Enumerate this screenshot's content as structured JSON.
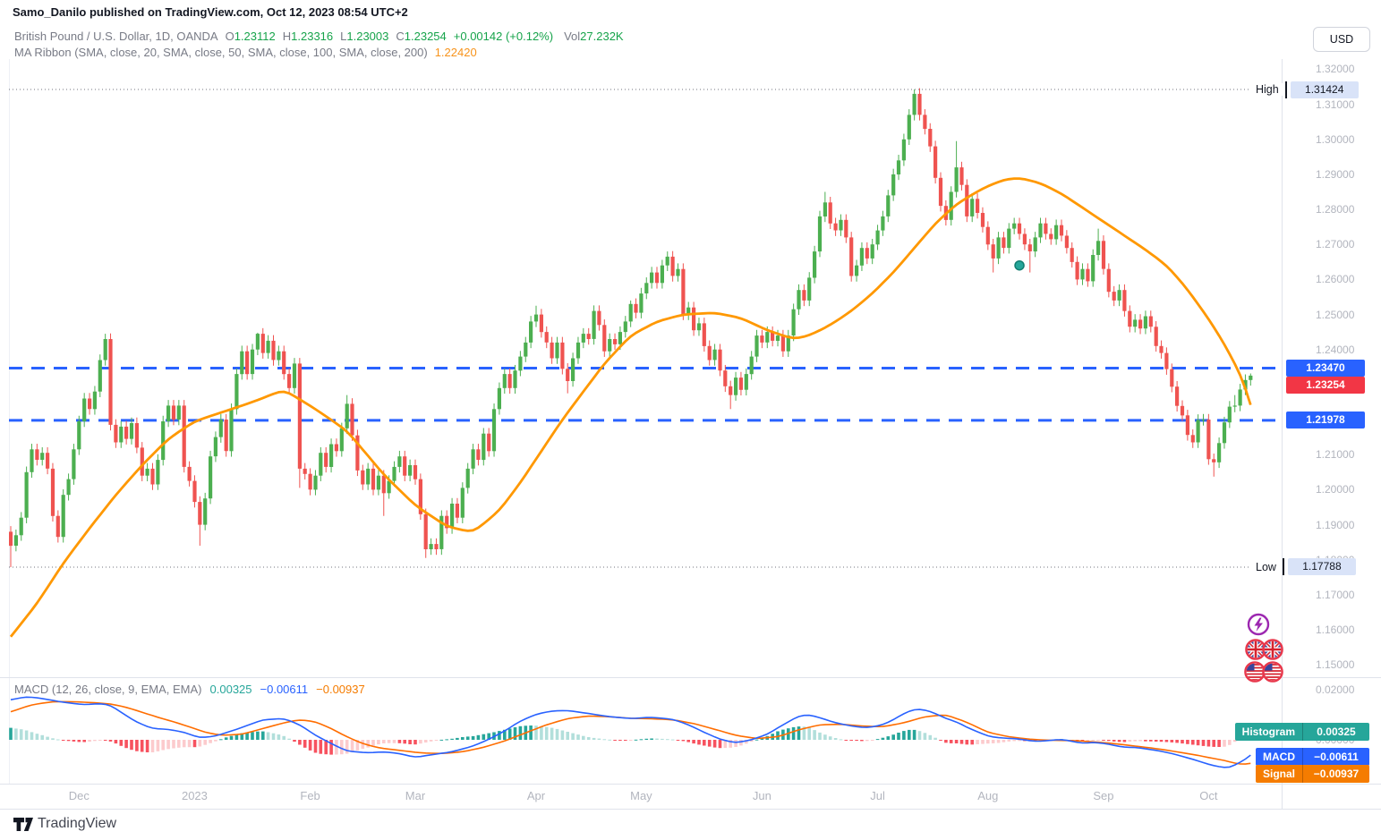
{
  "header": {
    "publisher": "Samo_Danilo published on TradingView.com, Oct 12, 2023 08:54 UTC+2"
  },
  "symbol_row": {
    "title": "British Pound / U.S. Dollar, 1D, OANDA",
    "ohlc": [
      {
        "label": "O",
        "value": "1.23112"
      },
      {
        "label": "H",
        "value": "1.23316"
      },
      {
        "label": "L",
        "value": "1.23003"
      },
      {
        "label": "C",
        "value": "1.23254"
      }
    ],
    "change": "+0.00142 (+0.12%)",
    "vol_label": "Vol",
    "vol": "27.232K"
  },
  "indicator_row": {
    "label": "MA Ribbon (SMA, close, 20, SMA, close, 50, SMA, close, 100, SMA, close, 200)",
    "value": "1.22420"
  },
  "macd_row": {
    "label": "MACD (12, 26, close, 9, EMA, EMA)",
    "values": [
      {
        "text": "0.00325",
        "color": "#26a69a"
      },
      {
        "text": "−0.00611",
        "color": "#2962ff"
      },
      {
        "text": "−0.00937",
        "color": "#f57c00"
      }
    ]
  },
  "axis": {
    "currency": "USD",
    "price_ticks": [
      {
        "t": "1.32000",
        "v": 1.32
      },
      {
        "t": "1.31000",
        "v": 1.31
      },
      {
        "t": "1.30000",
        "v": 1.3
      },
      {
        "t": "1.29000",
        "v": 1.29
      },
      {
        "t": "1.28000",
        "v": 1.28
      },
      {
        "t": "1.27000",
        "v": 1.27
      },
      {
        "t": "1.26000",
        "v": 1.26
      },
      {
        "t": "1.25000",
        "v": 1.25
      },
      {
        "t": "1.24000",
        "v": 1.24
      },
      {
        "t": "1.23000",
        "v": 1.23
      },
      {
        "t": "1.22000",
        "v": 1.22
      },
      {
        "t": "1.21000",
        "v": 1.21
      },
      {
        "t": "1.20000",
        "v": 1.2
      },
      {
        "t": "1.19000",
        "v": 1.19
      },
      {
        "t": "1.18000",
        "v": 1.18
      },
      {
        "t": "1.17000",
        "v": 1.17
      },
      {
        "t": "1.16000",
        "v": 1.16
      },
      {
        "t": "1.15000",
        "v": 1.15
      }
    ],
    "macd_ticks": [
      {
        "t": "0.02000",
        "v": 0.02
      },
      {
        "t": "0.00000",
        "v": 0.0
      }
    ],
    "months": [
      {
        "label": "Dec",
        "i": 13
      },
      {
        "label": "2023",
        "i": 35
      },
      {
        "label": "Feb",
        "i": 57
      },
      {
        "label": "Mar",
        "i": 77
      },
      {
        "label": "Apr",
        "i": 100
      },
      {
        "label": "May",
        "i": 120
      },
      {
        "label": "Jun",
        "i": 143
      },
      {
        "label": "Jul",
        "i": 165
      },
      {
        "label": "Aug",
        "i": 186
      },
      {
        "label": "Sep",
        "i": 208
      },
      {
        "label": "Oct",
        "i": 228
      }
    ]
  },
  "price_labels": {
    "high": {
      "label": "High",
      "value": "1.31424",
      "num": 1.31424
    },
    "low": {
      "label": "Low",
      "value": "1.17788",
      "num": 1.17788
    },
    "levels": [
      {
        "value": "1.23470",
        "num": 1.2347,
        "color": "#2962ff"
      },
      {
        "value": "1.21978",
        "num": 1.21978,
        "color": "#2962ff"
      }
    ],
    "last": {
      "value": "1.23254",
      "num": 1.23254,
      "color": "#f23645"
    }
  },
  "macd_badges": [
    {
      "label": "Histogram",
      "value": "0.00325",
      "color": "#26a69a"
    },
    {
      "label": "MACD",
      "value": "−0.00611",
      "color": "#2962ff"
    },
    {
      "label": "Signal",
      "value": "−0.00937",
      "color": "#f57c00"
    }
  ],
  "footer": {
    "brand": "TradingView"
  },
  "chart_data": {
    "type": "candlestick",
    "symbol": "GBPUSD",
    "exchange": "OANDA",
    "interval": "1D",
    "title": "British Pound / U.S. Dollar",
    "high": 1.31424,
    "low": 1.17788,
    "last_close": 1.23254,
    "levels": [
      1.2347,
      1.21978
    ],
    "first_open": 1.188,
    "wick_default": 0.0016,
    "colors": {
      "up": "#4caf50",
      "down": "#ef5350",
      "ma": "#ff9800",
      "macd": "#2962ff",
      "signal": "#ff6d00",
      "hist_up": "#26a69a",
      "hist_up_weak": "#b2dfdb",
      "hist_down": "#f7525f",
      "hist_down_weak": "#fccbcd",
      "level": "#2962ff"
    },
    "closes": [
      1.184,
      1.187,
      1.192,
      1.205,
      1.2115,
      1.2085,
      1.2105,
      1.206,
      1.1925,
      1.1865,
      1.1985,
      1.203,
      1.2115,
      1.2195,
      1.226,
      1.223,
      1.228,
      1.237,
      1.243,
      1.2185,
      1.2135,
      1.218,
      1.2145,
      1.219,
      1.212,
      1.204,
      1.206,
      1.2015,
      1.2085,
      1.2195,
      1.224,
      1.22,
      1.224,
      1.2065,
      1.2025,
      1.1965,
      1.19,
      1.1975,
      1.2095,
      1.215,
      1.22,
      1.211,
      1.223,
      1.233,
      1.2395,
      1.233,
      1.24,
      1.2445,
      1.239,
      1.2425,
      1.237,
      1.2395,
      1.233,
      1.229,
      1.236,
      1.206,
      1.2045,
      1.2,
      1.204,
      1.2105,
      1.2065,
      1.213,
      1.211,
      1.2175,
      1.2245,
      1.2155,
      1.2055,
      1.2015,
      1.206,
      1.2,
      1.204,
      1.199,
      1.2025,
      1.2065,
      1.2095,
      1.204,
      1.207,
      1.203,
      1.193,
      1.183,
      1.1845,
      1.183,
      1.1925,
      1.189,
      1.196,
      1.192,
      1.2005,
      1.206,
      1.2115,
      1.2085,
      1.216,
      1.211,
      1.223,
      1.229,
      1.233,
      1.229,
      1.234,
      1.238,
      1.242,
      1.248,
      1.25,
      1.245,
      1.242,
      1.2375,
      1.242,
      1.2345,
      1.231,
      1.2375,
      1.242,
      1.2445,
      1.243,
      1.251,
      1.247,
      1.2395,
      1.243,
      1.2415,
      1.245,
      1.248,
      1.253,
      1.2505,
      1.256,
      1.259,
      1.262,
      1.259,
      1.264,
      1.2665,
      1.261,
      1.263,
      1.25,
      1.252,
      1.2455,
      1.2475,
      1.241,
      1.237,
      1.24,
      1.234,
      1.2295,
      1.227,
      1.232,
      1.2285,
      1.233,
      1.238,
      1.244,
      1.242,
      1.245,
      1.2425,
      1.244,
      1.2395,
      1.244,
      1.2515,
      1.257,
      1.254,
      1.2605,
      1.268,
      1.278,
      1.282,
      1.276,
      1.274,
      1.277,
      1.272,
      1.261,
      1.264,
      1.269,
      1.266,
      1.27,
      1.274,
      1.278,
      1.284,
      1.29,
      1.294,
      1.3,
      1.307,
      1.313,
      1.307,
      1.303,
      1.298,
      1.289,
      1.281,
      1.277,
      1.285,
      1.292,
      1.287,
      1.278,
      1.283,
      1.279,
      1.275,
      1.27,
      1.266,
      1.272,
      1.269,
      1.2745,
      1.276,
      1.273,
      1.27,
      1.268,
      1.272,
      1.276,
      1.273,
      1.2715,
      1.2755,
      1.2725,
      1.269,
      1.265,
      1.26,
      1.263,
      1.2595,
      1.267,
      1.271,
      1.263,
      1.2565,
      1.254,
      1.257,
      1.251,
      1.2465,
      1.2485,
      1.246,
      1.2495,
      1.2465,
      1.241,
      1.239,
      1.2344,
      1.2294,
      1.2239,
      1.2212,
      1.2156,
      1.2135,
      1.2199,
      1.22,
      1.2087,
      1.2078,
      1.2133,
      1.2192,
      1.2237,
      1.224,
      1.2286,
      1.2313,
      1.23254
    ],
    "wick_overrides": {
      "0": {
        "low": 1.17788
      },
      "18": {
        "high": 1.2445
      },
      "36": {
        "low": 1.184
      },
      "47": {
        "high": 1.2448
      },
      "55": {
        "low": 1.2005
      },
      "64": {
        "high": 1.227
      },
      "71": {
        "low": 1.1925
      },
      "79": {
        "low": 1.1805
      },
      "100": {
        "high": 1.2525
      },
      "106": {
        "low": 1.2275
      },
      "118": {
        "high": 1.254
      },
      "125": {
        "high": 1.268
      },
      "137": {
        "low": 1.223
      },
      "155": {
        "high": 1.285
      },
      "172": {
        "high": 1.31424
      },
      "180": {
        "high": 1.2995
      },
      "187": {
        "low": 1.262
      },
      "194": {
        "low": 1.262
      },
      "207": {
        "high": 1.2745
      },
      "229": {
        "low": 1.20372
      },
      "233": {
        "high": 1.227
      },
      "236": {
        "high": 1.23316
      }
    },
    "ma_value": 1.2242,
    "ma_anchors": [
      [
        0,
        1.158
      ],
      [
        5,
        1.1675
      ],
      [
        10,
        1.179
      ],
      [
        15,
        1.189
      ],
      [
        20,
        1.1985
      ],
      [
        25,
        1.207
      ],
      [
        30,
        1.2145
      ],
      [
        35,
        1.2195
      ],
      [
        41,
        1.2225
      ],
      [
        46,
        1.225
      ],
      [
        52,
        1.2285
      ],
      [
        58,
        1.223
      ],
      [
        64,
        1.2168
      ],
      [
        71,
        1.2043
      ],
      [
        77,
        1.1955
      ],
      [
        83,
        1.1895
      ],
      [
        88,
        1.1878
      ],
      [
        93,
        1.194
      ],
      [
        97,
        1.202
      ],
      [
        101,
        1.211
      ],
      [
        105,
        1.22
      ],
      [
        109,
        1.228
      ],
      [
        113,
        1.236
      ],
      [
        118,
        1.244
      ],
      [
        123,
        1.248
      ],
      [
        128,
        1.25
      ],
      [
        134,
        1.2505
      ],
      [
        139,
        1.249
      ],
      [
        144,
        1.2455
      ],
      [
        149,
        1.243
      ],
      [
        152,
        1.244
      ],
      [
        156,
        1.247
      ],
      [
        160,
        1.251
      ],
      [
        164,
        1.256
      ],
      [
        168,
        1.262
      ],
      [
        172,
        1.269
      ],
      [
        176,
        1.276
      ],
      [
        180,
        1.2815
      ],
      [
        185,
        1.286
      ],
      [
        189,
        1.2885
      ],
      [
        192,
        1.289
      ],
      [
        196,
        1.2875
      ],
      [
        200,
        1.2845
      ],
      [
        204,
        1.2805
      ],
      [
        208,
        1.2765
      ],
      [
        212,
        1.2725
      ],
      [
        216,
        1.2685
      ],
      [
        220,
        1.264
      ],
      [
        223,
        1.259
      ],
      [
        226,
        1.253
      ],
      [
        229,
        1.2465
      ],
      [
        231,
        1.2415
      ],
      [
        233,
        1.236
      ],
      [
        234,
        1.233
      ],
      [
        235,
        1.2295
      ],
      [
        236,
        1.2242
      ]
    ],
    "macd": {
      "histogram": 0.00325,
      "macd": -0.00611,
      "signal": -0.00937
    },
    "macd_anchors": [
      [
        0,
        0.016
      ],
      [
        3,
        0.0172
      ],
      [
        6,
        0.0165
      ],
      [
        10,
        0.015
      ],
      [
        14,
        0.014
      ],
      [
        17,
        0.0145
      ],
      [
        19,
        0.0138
      ],
      [
        21,
        0.011
      ],
      [
        24,
        0.007
      ],
      [
        27,
        0.0045
      ],
      [
        30,
        0.0042
      ],
      [
        33,
        0.003
      ],
      [
        36,
        0.0008
      ],
      [
        39,
        0.0015
      ],
      [
        43,
        0.0042
      ],
      [
        48,
        0.008
      ],
      [
        52,
        0.0085
      ],
      [
        55,
        0.006
      ],
      [
        58,
        0.0018
      ],
      [
        61,
        -0.0015
      ],
      [
        64,
        -0.0045
      ],
      [
        68,
        -0.0052
      ],
      [
        71,
        -0.0048
      ],
      [
        74,
        -0.0055
      ],
      [
        77,
        -0.007
      ],
      [
        80,
        -0.006
      ],
      [
        84,
        -0.0048
      ],
      [
        88,
        -0.0025
      ],
      [
        91,
        0.0002
      ],
      [
        94,
        0.0035
      ],
      [
        97,
        0.0075
      ],
      [
        100,
        0.0102
      ],
      [
        103,
        0.0115
      ],
      [
        106,
        0.0117
      ],
      [
        110,
        0.0105
      ],
      [
        114,
        0.0092
      ],
      [
        118,
        0.0085
      ],
      [
        122,
        0.009
      ],
      [
        126,
        0.0082
      ],
      [
        129,
        0.006
      ],
      [
        132,
        0.003
      ],
      [
        135,
        0.0002
      ],
      [
        138,
        -0.0012
      ],
      [
        141,
        0
      ],
      [
        144,
        0.0022
      ],
      [
        147,
        0.006
      ],
      [
        150,
        0.0095
      ],
      [
        152,
        0.01
      ],
      [
        154,
        0.0088
      ],
      [
        157,
        0.0068
      ],
      [
        160,
        0.0055
      ],
      [
        163,
        0.0048
      ],
      [
        166,
        0.006
      ],
      [
        168,
        0.008
      ],
      [
        170,
        0.0105
      ],
      [
        172,
        0.0122
      ],
      [
        174,
        0.012
      ],
      [
        176,
        0.0105
      ],
      [
        178,
        0.0085
      ],
      [
        180,
        0.0072
      ],
      [
        182,
        0.005
      ],
      [
        184,
        0.0032
      ],
      [
        186,
        0.0015
      ],
      [
        188,
        0.0008
      ],
      [
        190,
        0.0006
      ],
      [
        192,
        0.0003
      ],
      [
        194,
        -0.0004
      ],
      [
        196,
        -0.0006
      ],
      [
        198,
        -0.0002
      ],
      [
        200,
        0.0002
      ],
      [
        202,
        -0.0006
      ],
      [
        204,
        -0.0014
      ],
      [
        206,
        -0.001
      ],
      [
        208,
        -0.0014
      ],
      [
        210,
        -0.0022
      ],
      [
        212,
        -0.003
      ],
      [
        214,
        -0.003
      ],
      [
        216,
        -0.0036
      ],
      [
        218,
        -0.0042
      ],
      [
        220,
        -0.005
      ],
      [
        222,
        -0.006
      ],
      [
        224,
        -0.0072
      ],
      [
        226,
        -0.0084
      ],
      [
        228,
        -0.0098
      ],
      [
        230,
        -0.0108
      ],
      [
        232,
        -0.0112
      ],
      [
        233,
        -0.01
      ],
      [
        234,
        -0.009
      ],
      [
        235,
        -0.0078
      ],
      [
        236,
        -0.0061
      ]
    ],
    "signal_anchors": [
      [
        0,
        0.0112
      ],
      [
        4,
        0.014
      ],
      [
        8,
        0.0152
      ],
      [
        12,
        0.0152
      ],
      [
        16,
        0.0148
      ],
      [
        19,
        0.0143
      ],
      [
        22,
        0.013
      ],
      [
        25,
        0.011
      ],
      [
        28,
        0.009
      ],
      [
        31,
        0.0072
      ],
      [
        34,
        0.0052
      ],
      [
        37,
        0.003
      ],
      [
        40,
        0.0018
      ],
      [
        44,
        0.0022
      ],
      [
        48,
        0.0045
      ],
      [
        52,
        0.0068
      ],
      [
        55,
        0.008
      ],
      [
        58,
        0.0072
      ],
      [
        61,
        0.0045
      ],
      [
        64,
        0.0012
      ],
      [
        67,
        -0.0015
      ],
      [
        70,
        -0.0032
      ],
      [
        74,
        -0.0042
      ],
      [
        78,
        -0.0052
      ],
      [
        82,
        -0.0055
      ],
      [
        86,
        -0.0048
      ],
      [
        90,
        -0.003
      ],
      [
        94,
        -0.0005
      ],
      [
        98,
        0.0028
      ],
      [
        102,
        0.006
      ],
      [
        106,
        0.0085
      ],
      [
        110,
        0.0095
      ],
      [
        114,
        0.0092
      ],
      [
        118,
        0.0086
      ],
      [
        122,
        0.0084
      ],
      [
        126,
        0.008
      ],
      [
        130,
        0.0065
      ],
      [
        134,
        0.0042
      ],
      [
        138,
        0.0018
      ],
      [
        142,
        0.0005
      ],
      [
        146,
        0.0012
      ],
      [
        150,
        0.004
      ],
      [
        154,
        0.006
      ],
      [
        158,
        0.0062
      ],
      [
        162,
        0.0055
      ],
      [
        166,
        0.0052
      ],
      [
        170,
        0.0068
      ],
      [
        174,
        0.0092
      ],
      [
        178,
        0.01
      ],
      [
        182,
        0.007
      ],
      [
        186,
        0.003
      ],
      [
        190,
        0.0012
      ],
      [
        194,
        0.0002
      ],
      [
        198,
        -0.0002
      ],
      [
        202,
        -0.0003
      ],
      [
        206,
        -0.0008
      ],
      [
        210,
        -0.0015
      ],
      [
        214,
        -0.0025
      ],
      [
        218,
        -0.0035
      ],
      [
        222,
        -0.0048
      ],
      [
        226,
        -0.0062
      ],
      [
        229,
        -0.0075
      ],
      [
        231,
        -0.0082
      ],
      [
        232,
        -0.0088
      ],
      [
        233,
        -0.0093
      ],
      [
        234,
        -0.0097
      ],
      [
        235,
        -0.0098
      ],
      [
        236,
        -0.0094
      ]
    ],
    "marker": {
      "idx": 192,
      "price": 1.264,
      "color": "#26a69a"
    }
  }
}
